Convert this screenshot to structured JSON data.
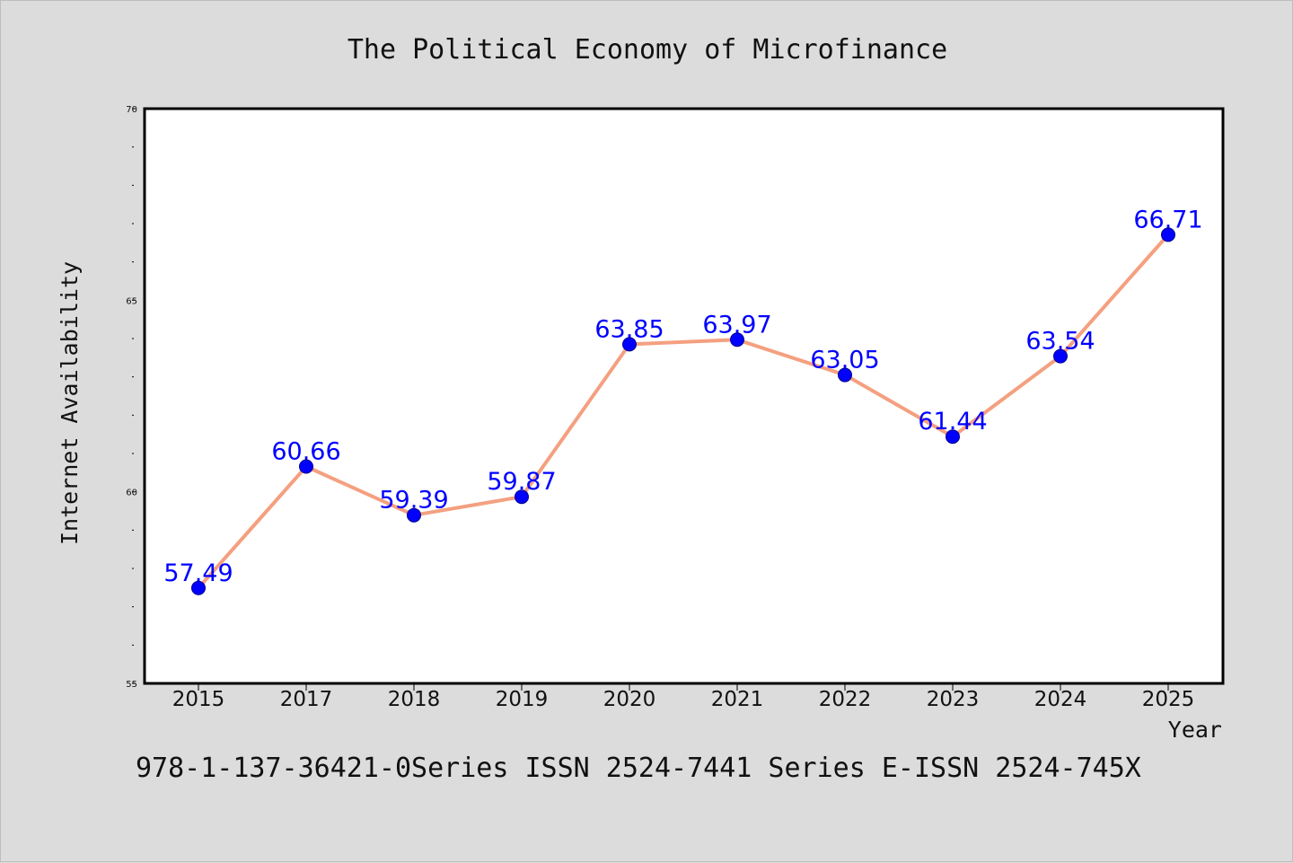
{
  "chart_data": {
    "type": "line",
    "title": "The Political Economy of Microfinance",
    "xlabel": "Year",
    "ylabel": "Internet Availability",
    "categories": [
      "2015",
      "2017",
      "2018",
      "2019",
      "2020",
      "2021",
      "2022",
      "2023",
      "2024",
      "2025"
    ],
    "series": [
      {
        "values": [
          57.49,
          60.66,
          59.39,
          59.87,
          63.85,
          63.97,
          63.05,
          61.44,
          63.54,
          66.71
        ],
        "value_labels": [
          "57.49",
          "60.66",
          "59.39",
          "59.87",
          "63.85",
          "63.97",
          "63.05",
          "61.44",
          "63.54",
          "66.71"
        ],
        "line_color": "#f4a080",
        "marker_color": "#0000ff",
        "label_color": "#0000ff"
      }
    ],
    "ylim": [
      55,
      70
    ],
    "yticks": [
      "55",
      "60",
      "65",
      "70"
    ],
    "grid": false,
    "legend": "none"
  },
  "footer": {
    "text": "978-1-137-36421-0Series ISSN 2524-7441 Series E-ISSN 2524-745X"
  }
}
